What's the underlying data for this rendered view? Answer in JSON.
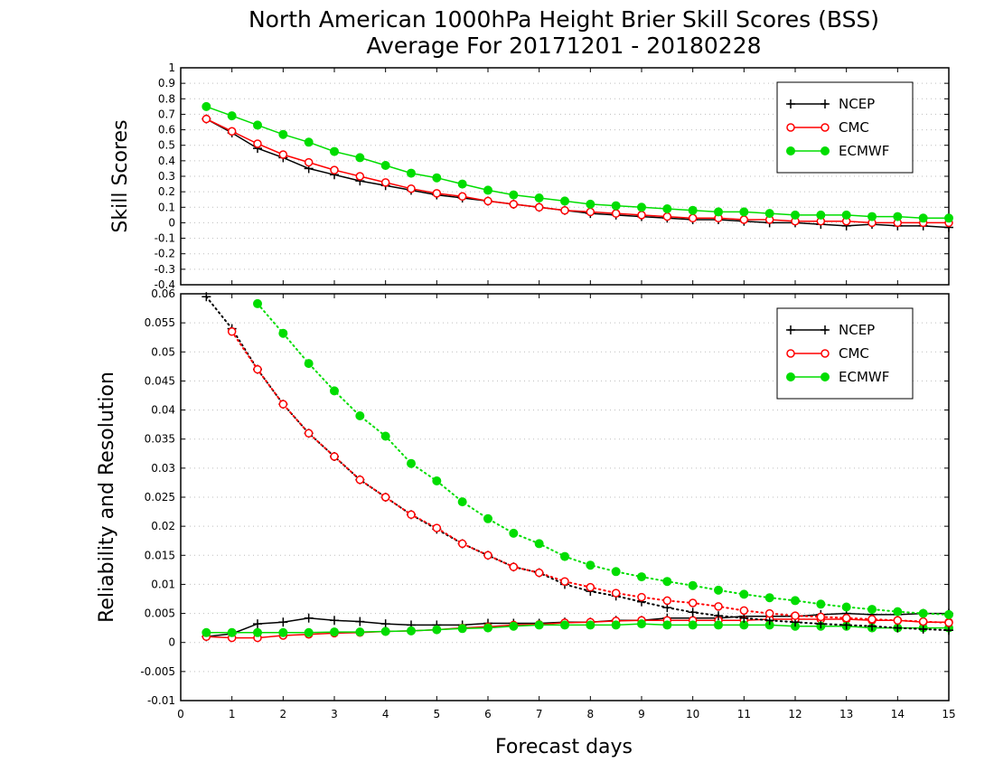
{
  "figure": {
    "title_line1": "North American 1000hPa Height Brier Skill Scores (BSS)",
    "title_line2": "Average For 20171201 - 20180228",
    "xlabel": "Forecast days",
    "colors": {
      "NCEP": "#000000",
      "CMC": "#ff0000",
      "ECMWF": "#00dd00"
    }
  },
  "chart_data": [
    {
      "type": "line",
      "ylabel": "Skill Scores",
      "xlim": [
        0,
        15
      ],
      "ylim": [
        -0.4,
        1
      ],
      "grid": true,
      "legend_position": "top-right",
      "x_ticks": [
        "0",
        "1",
        "2",
        "3",
        "4",
        "5",
        "6",
        "7",
        "8",
        "9",
        "10",
        "11",
        "12",
        "13",
        "14",
        "15"
      ],
      "y_ticks": [
        "-0.4",
        "-0.3",
        "-0.2",
        "-0.1",
        "0",
        "0.1",
        "0.2",
        "0.3",
        "0.4",
        "0.5",
        "0.6",
        "0.7",
        "0.8",
        "0.9",
        "1"
      ],
      "series": [
        {
          "name": "NCEP",
          "marker": "plus",
          "x": [
            0.5,
            1,
            1.5,
            2,
            2.5,
            3,
            3.5,
            4,
            4.5,
            5,
            5.5,
            6,
            6.5,
            7,
            7.5,
            8,
            8.5,
            9,
            9.5,
            10,
            10.5,
            11,
            11.5,
            12,
            12.5,
            13,
            13.5,
            14,
            14.5,
            15
          ],
          "values": [
            0.67,
            0.58,
            0.48,
            0.42,
            0.35,
            0.31,
            0.27,
            0.24,
            0.21,
            0.18,
            0.16,
            0.14,
            0.12,
            0.1,
            0.08,
            0.06,
            0.05,
            0.04,
            0.03,
            0.02,
            0.02,
            0.01,
            0.0,
            0.0,
            -0.01,
            -0.02,
            -0.01,
            -0.02,
            -0.02,
            -0.03
          ]
        },
        {
          "name": "CMC",
          "marker": "open-circle",
          "x": [
            0.5,
            1,
            1.5,
            2,
            2.5,
            3,
            3.5,
            4,
            4.5,
            5,
            5.5,
            6,
            6.5,
            7,
            7.5,
            8,
            8.5,
            9,
            9.5,
            10,
            10.5,
            11,
            11.5,
            12,
            12.5,
            13,
            13.5,
            14,
            14.5,
            15
          ],
          "values": [
            0.67,
            0.59,
            0.51,
            0.44,
            0.39,
            0.34,
            0.3,
            0.26,
            0.22,
            0.19,
            0.17,
            0.14,
            0.12,
            0.1,
            0.08,
            0.07,
            0.06,
            0.05,
            0.04,
            0.03,
            0.03,
            0.02,
            0.02,
            0.01,
            0.01,
            0.01,
            0.0,
            0.0,
            0.0,
            0.0
          ]
        },
        {
          "name": "ECMWF",
          "marker": "filled-circle",
          "x": [
            0.5,
            1,
            1.5,
            2,
            2.5,
            3,
            3.5,
            4,
            4.5,
            5,
            5.5,
            6,
            6.5,
            7,
            7.5,
            8,
            8.5,
            9,
            9.5,
            10,
            10.5,
            11,
            11.5,
            12,
            12.5,
            13,
            13.5,
            14,
            14.5,
            15
          ],
          "values": [
            0.75,
            0.69,
            0.63,
            0.57,
            0.52,
            0.46,
            0.42,
            0.37,
            0.32,
            0.29,
            0.25,
            0.21,
            0.18,
            0.16,
            0.14,
            0.12,
            0.11,
            0.1,
            0.09,
            0.08,
            0.07,
            0.07,
            0.06,
            0.05,
            0.05,
            0.05,
            0.04,
            0.04,
            0.03,
            0.03
          ]
        }
      ]
    },
    {
      "type": "line",
      "ylabel": "Reliability and Resolution",
      "xlim": [
        0,
        15
      ],
      "ylim": [
        -0.01,
        0.06
      ],
      "grid": true,
      "legend_position": "top-right",
      "x_ticks": [
        "0",
        "1",
        "2",
        "3",
        "4",
        "5",
        "6",
        "7",
        "8",
        "9",
        "10",
        "11",
        "12",
        "13",
        "14",
        "15"
      ],
      "y_ticks": [
        "-0.01",
        "-0.005",
        "0",
        "0.005",
        "0.01",
        "0.015",
        "0.02",
        "0.025",
        "0.03",
        "0.035",
        "0.04",
        "0.045",
        "0.05",
        "0.055",
        "0.06"
      ],
      "series": [
        {
          "name": "NCEP",
          "marker": "plus",
          "line": "solid",
          "x": [
            0.5,
            1,
            1.5,
            2,
            2.5,
            3,
            3.5,
            4,
            4.5,
            5,
            5.5,
            6,
            6.5,
            7,
            7.5,
            8,
            8.5,
            9,
            9.5,
            10,
            10.5,
            11,
            11.5,
            12,
            12.5,
            13,
            13.5,
            14,
            14.5,
            15
          ],
          "values": [
            0.001,
            0.0015,
            0.0032,
            0.0035,
            0.0042,
            0.0038,
            0.0036,
            0.0032,
            0.003,
            0.003,
            0.003,
            0.0033,
            0.0033,
            0.0033,
            0.0035,
            0.0035,
            0.0038,
            0.0038,
            0.0042,
            0.0042,
            0.0042,
            0.0045,
            0.0045,
            0.0045,
            0.0048,
            0.005,
            0.0048,
            0.0048,
            0.005,
            0.005
          ]
        },
        {
          "name": "CMC",
          "marker": "open-circle",
          "line": "solid",
          "x": [
            0.5,
            1,
            1.5,
            2,
            2.5,
            3,
            3.5,
            4,
            4.5,
            5,
            5.5,
            6,
            6.5,
            7,
            7.5,
            8,
            8.5,
            9,
            9.5,
            10,
            10.5,
            11,
            11.5,
            12,
            12.5,
            13,
            13.5,
            14,
            14.5,
            15
          ],
          "values": [
            0.001,
            0.0008,
            0.0008,
            0.0012,
            0.0014,
            0.0016,
            0.0017,
            0.0019,
            0.002,
            0.0022,
            0.0025,
            0.0027,
            0.003,
            0.0031,
            0.0034,
            0.0035,
            0.0037,
            0.0038,
            0.0038,
            0.0038,
            0.0038,
            0.0038,
            0.004,
            0.004,
            0.004,
            0.004,
            0.0038,
            0.0038,
            0.0035,
            0.0035
          ]
        },
        {
          "name": "ECMWF",
          "marker": "filled-circle",
          "line": "solid",
          "x": [
            0.5,
            1,
            1.5,
            2,
            2.5,
            3,
            3.5,
            4,
            4.5,
            5,
            5.5,
            6,
            6.5,
            7,
            7.5,
            8,
            8.5,
            9,
            9.5,
            10,
            10.5,
            11,
            11.5,
            12,
            12.5,
            13,
            13.5,
            14,
            14.5,
            15
          ],
          "values": [
            0.0017,
            0.0017,
            0.0017,
            0.0017,
            0.0017,
            0.0018,
            0.0018,
            0.0019,
            0.002,
            0.0022,
            0.0024,
            0.0025,
            0.0028,
            0.003,
            0.003,
            0.003,
            0.003,
            0.0032,
            0.003,
            0.003,
            0.003,
            0.003,
            0.003,
            0.0028,
            0.0028,
            0.0028,
            0.0025,
            0.0025,
            0.0025,
            0.0025
          ]
        },
        {
          "name": "NCEP",
          "marker": "plus",
          "line": "dotted",
          "x": [
            0.5,
            1,
            1.5,
            2,
            2.5,
            3,
            3.5,
            4,
            4.5,
            5,
            5.5,
            6,
            6.5,
            7,
            7.5,
            8,
            8.5,
            9,
            9.5,
            10,
            10.5,
            11,
            11.5,
            12,
            12.5,
            13,
            13.5,
            14,
            14.5,
            15
          ],
          "values": [
            0.0595,
            0.054,
            0.047,
            0.041,
            0.036,
            0.032,
            0.028,
            0.025,
            0.022,
            0.0195,
            0.017,
            0.015,
            0.013,
            0.012,
            0.01,
            0.0088,
            0.008,
            0.007,
            0.006,
            0.0052,
            0.0046,
            0.0042,
            0.0038,
            0.0035,
            0.0032,
            0.003,
            0.0028,
            0.0025,
            0.0023,
            0.0021
          ]
        },
        {
          "name": "CMC",
          "marker": "open-circle",
          "line": "dotted",
          "x": [
            1,
            1.5,
            2,
            2.5,
            3,
            3.5,
            4,
            4.5,
            5,
            5.5,
            6,
            6.5,
            7,
            7.5,
            8,
            8.5,
            9,
            9.5,
            10,
            10.5,
            11,
            11.5,
            12,
            12.5,
            13,
            13.5,
            14,
            14.5,
            15
          ],
          "values": [
            0.0535,
            0.047,
            0.041,
            0.036,
            0.032,
            0.028,
            0.025,
            0.022,
            0.0197,
            0.017,
            0.015,
            0.013,
            0.012,
            0.0105,
            0.0095,
            0.0085,
            0.0078,
            0.0072,
            0.0068,
            0.0062,
            0.0055,
            0.005,
            0.0046,
            0.0044,
            0.0042,
            0.004,
            0.0038,
            0.0036,
            0.0034
          ]
        },
        {
          "name": "ECMWF",
          "marker": "filled-circle",
          "line": "dotted",
          "x": [
            1.5,
            2,
            2.5,
            3,
            3.5,
            4,
            4.5,
            5,
            5.5,
            6,
            6.5,
            7,
            7.5,
            8,
            8.5,
            9,
            9.5,
            10,
            10.5,
            11,
            11.5,
            12,
            12.5,
            13,
            13.5,
            14,
            14.5,
            15
          ],
          "values": [
            0.0583,
            0.0532,
            0.048,
            0.0433,
            0.039,
            0.0355,
            0.0308,
            0.0278,
            0.0242,
            0.0213,
            0.0188,
            0.017,
            0.0148,
            0.0133,
            0.0122,
            0.0113,
            0.0105,
            0.0098,
            0.009,
            0.0083,
            0.0077,
            0.0072,
            0.0066,
            0.0061,
            0.0057,
            0.0053,
            0.005,
            0.0048
          ]
        }
      ]
    }
  ]
}
